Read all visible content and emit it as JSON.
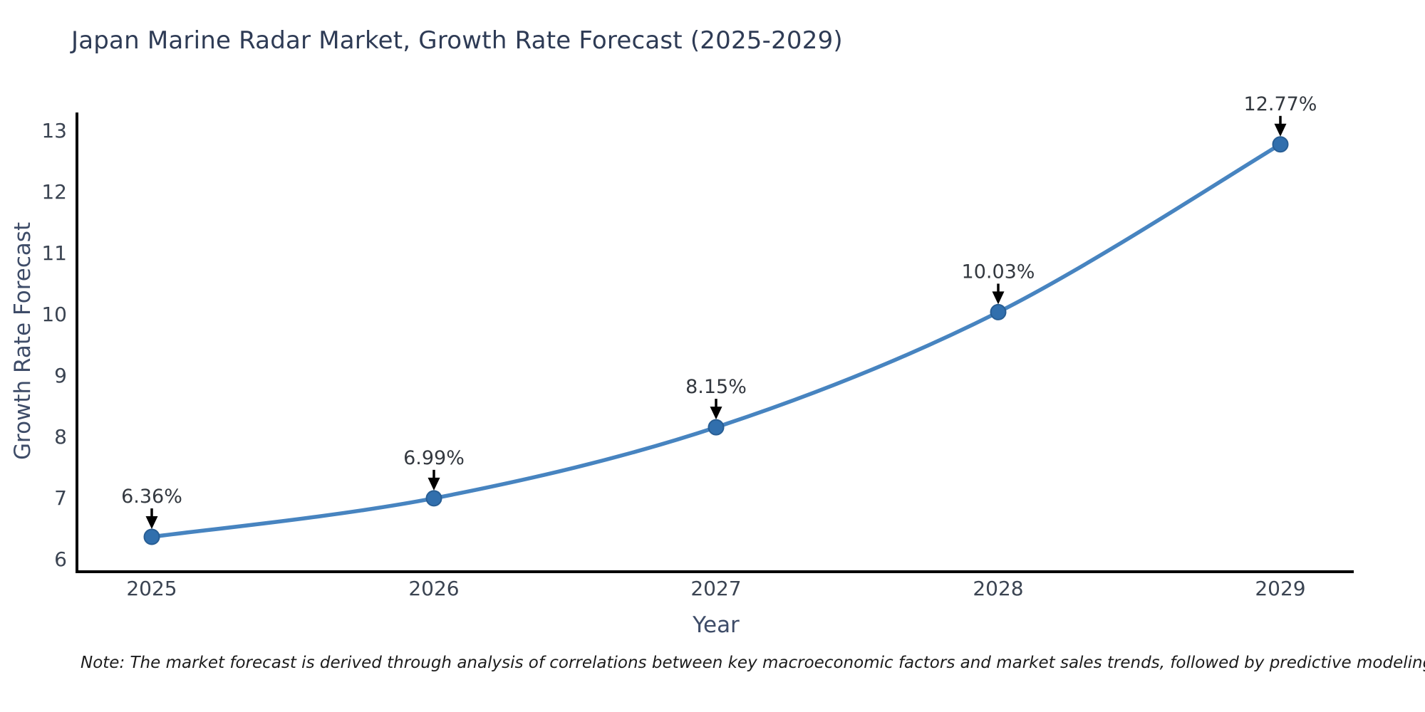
{
  "title": "Japan Marine Radar Market, Growth Rate Forecast (2025-2029)",
  "note": "Note: The market forecast is derived through analysis of correlations between key macroeconomic factors and market sales trends, followed by predictive modeling to project future sales.",
  "chart_data": {
    "type": "line",
    "title": "Japan Marine Radar Market, Growth Rate Forecast (2025-2029)",
    "xlabel": "Year",
    "ylabel": "Growth Rate Forecast",
    "categories": [
      "2025",
      "2026",
      "2027",
      "2028",
      "2029"
    ],
    "series": [
      {
        "name": "Growth Rate Forecast",
        "values": [
          6.36,
          6.99,
          8.15,
          10.03,
          12.77
        ]
      }
    ],
    "data_labels": [
      "6.36%",
      "6.99%",
      "8.15%",
      "10.03%",
      "12.77%"
    ],
    "yticks": [
      6,
      7,
      8,
      9,
      10,
      11,
      12,
      13
    ],
    "ylim": [
      5.8,
      13.3
    ],
    "grid": false,
    "legend_position": "none",
    "smooth_line": true,
    "annotations": "black arrows pointing down to each data point from percentage labels"
  },
  "colors": {
    "background": "#ffffff",
    "title_text": "#2e3b55",
    "axis_title_text": "#3e4c68",
    "tick_text": "#3b4452",
    "axis_line": "#000000",
    "line": "#4784c0",
    "marker_fill": "#316fad",
    "marker_edge": "#285e94",
    "annotation_text": "#33383f",
    "annotation_arrow": "#000000"
  }
}
